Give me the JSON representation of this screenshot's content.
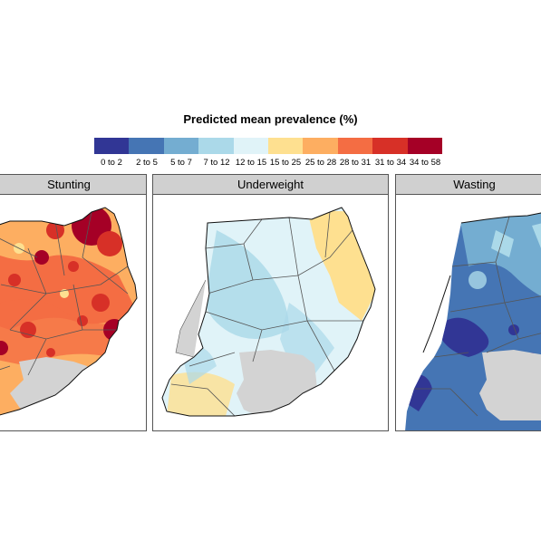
{
  "legend": {
    "title": "Predicted mean prevalence (%)",
    "items": [
      {
        "label": "0 to 2",
        "color": "#313695"
      },
      {
        "label": "2 to 5",
        "color": "#4575b4"
      },
      {
        "label": "5 to 7",
        "color": "#74add1"
      },
      {
        "label": "7 to 12",
        "color": "#abd9e9"
      },
      {
        "label": "12 to 15",
        "color": "#e0f3f8"
      },
      {
        "label": "15 to 25",
        "color": "#fee090"
      },
      {
        "label": "25 to 28",
        "color": "#fdae61"
      },
      {
        "label": "28 to 31",
        "color": "#f46d43"
      },
      {
        "label": "31 to 34",
        "color": "#d73027"
      },
      {
        "label": "34 to 58",
        "color": "#a50026"
      }
    ]
  },
  "panels": [
    {
      "title": "Stunting"
    },
    {
      "title": "Underweight"
    },
    {
      "title": "Wasting"
    }
  ],
  "colors": {
    "lake": "#d3d3d3",
    "border": "#111111",
    "district_lines": "#555555"
  }
}
